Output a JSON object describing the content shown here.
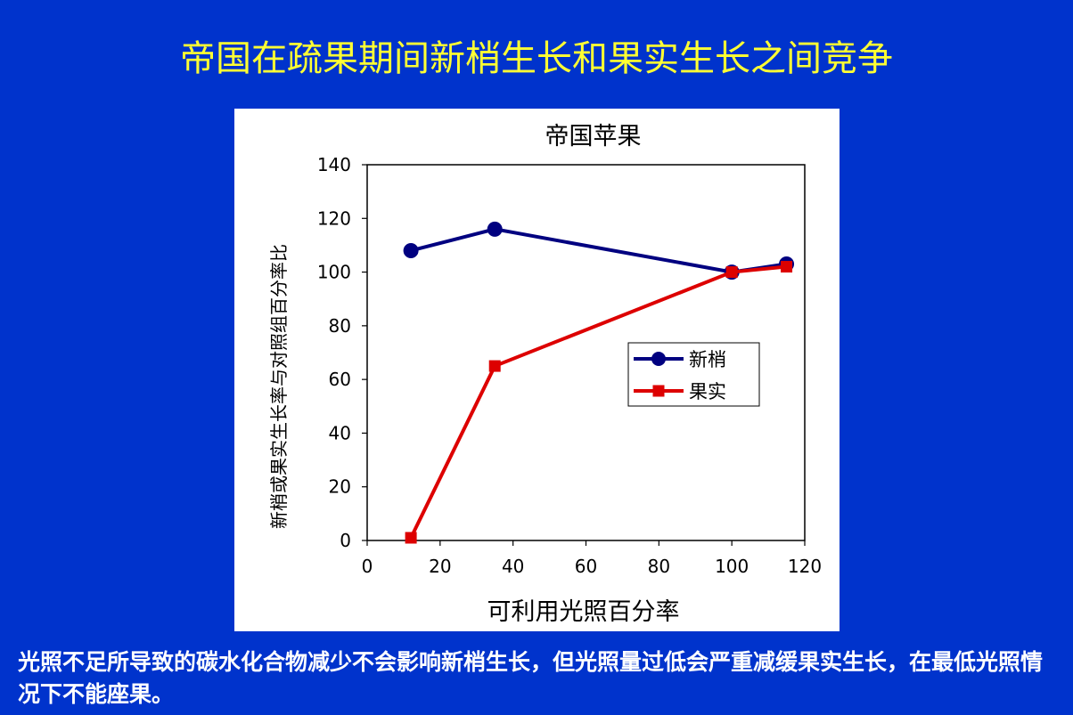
{
  "slide": {
    "title": "帝国在疏果期间新梢生长和果实生长之间竞争",
    "caption": "光照不足所导致的碳水化合物减少不会影响新梢生长，但光照量过低会严重减缓果实生长，在最低光照情况下不能座果。"
  },
  "chart_data": {
    "type": "line",
    "title": "帝国苹果",
    "xlabel": "可利用光照百分率",
    "ylabel": "新梢或果实生长率与对照组百分率比",
    "xlim": [
      0,
      120
    ],
    "ylim": [
      0,
      140
    ],
    "xticks": [
      0,
      20,
      40,
      60,
      80,
      100,
      120
    ],
    "yticks": [
      0,
      20,
      40,
      60,
      80,
      100,
      120,
      140
    ],
    "grid": false,
    "legend_position": "center-right",
    "series": [
      {
        "name": "新梢",
        "color": "#000080",
        "marker": "circle",
        "x": [
          12,
          35,
          100,
          115
        ],
        "y": [
          108,
          116,
          100,
          103
        ]
      },
      {
        "name": "果实",
        "color": "#dd0000",
        "marker": "square",
        "x": [
          12,
          35,
          100,
          115
        ],
        "y": [
          1,
          65,
          100,
          102
        ]
      }
    ]
  }
}
